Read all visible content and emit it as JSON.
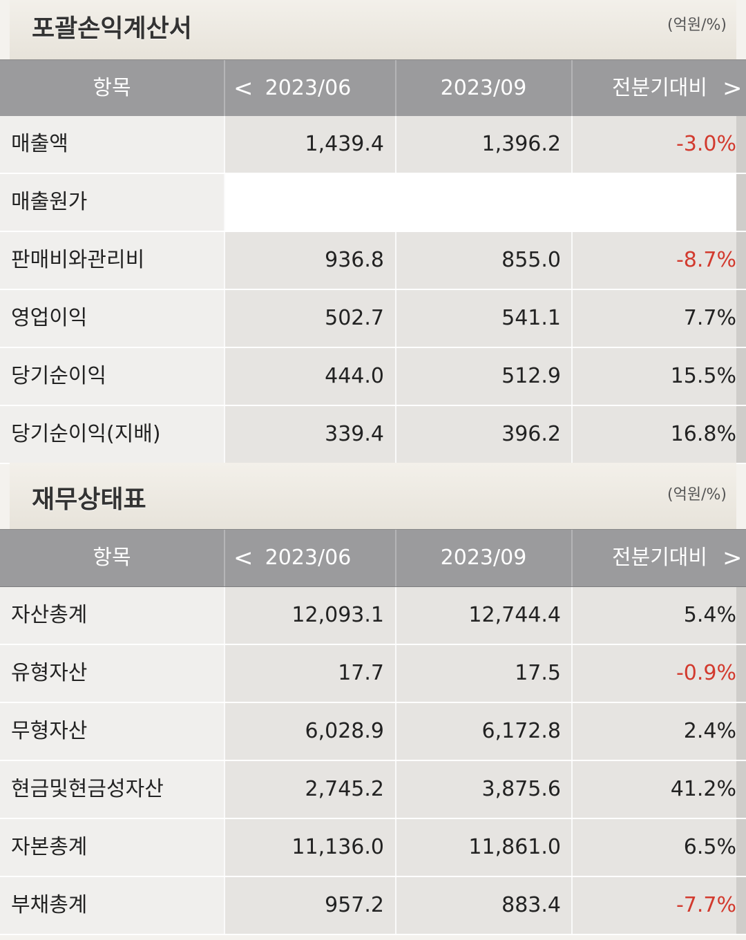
{
  "income": {
    "title": "포괄손익계산서",
    "unit": "(억원/%)",
    "headers": {
      "item": "항목",
      "col1": "2023/06",
      "col2": "2023/09",
      "col3": "전분기대비",
      "prev": "<",
      "next": ">"
    },
    "rows": [
      {
        "label": "매출액",
        "v1": "1,439.4",
        "v2": "1,396.2",
        "v3": "-3.0%",
        "neg": true
      },
      {
        "label": "매출원가",
        "v1": "",
        "v2": "",
        "v3": "",
        "neg": false
      },
      {
        "label": "판매비와관리비",
        "v1": "936.8",
        "v2": "855.0",
        "v3": "-8.7%",
        "neg": true
      },
      {
        "label": "영업이익",
        "v1": "502.7",
        "v2": "541.1",
        "v3": "7.7%",
        "neg": false
      },
      {
        "label": "당기순이익",
        "v1": "444.0",
        "v2": "512.9",
        "v3": "15.5%",
        "neg": false
      },
      {
        "label": "당기순이익(지배)",
        "v1": "339.4",
        "v2": "396.2",
        "v3": "16.8%",
        "neg": false
      }
    ]
  },
  "balance": {
    "title": "재무상태표",
    "unit": "(억원/%)",
    "headers": {
      "item": "항목",
      "col1": "2023/06",
      "col2": "2023/09",
      "col3": "전분기대비",
      "prev": "<",
      "next": ">"
    },
    "rows": [
      {
        "label": "자산총계",
        "v1": "12,093.1",
        "v2": "12,744.4",
        "v3": "5.4%",
        "neg": false
      },
      {
        "label": "유형자산",
        "v1": "17.7",
        "v2": "17.5",
        "v3": "-0.9%",
        "neg": true
      },
      {
        "label": "무형자산",
        "v1": "6,028.9",
        "v2": "6,172.8",
        "v3": "2.4%",
        "neg": false
      },
      {
        "label": "현금및현금성자산",
        "v1": "2,745.2",
        "v2": "3,875.6",
        "v3": "41.2%",
        "neg": false
      },
      {
        "label": "자본총계",
        "v1": "11,136.0",
        "v2": "11,861.0",
        "v3": "6.5%",
        "neg": false
      },
      {
        "label": "부채총계",
        "v1": "957.2",
        "v2": "883.4",
        "v3": "-7.7%",
        "neg": true
      }
    ]
  },
  "colors": {
    "header_bg": "#9b9b9d",
    "negative": "#d23a2e"
  }
}
